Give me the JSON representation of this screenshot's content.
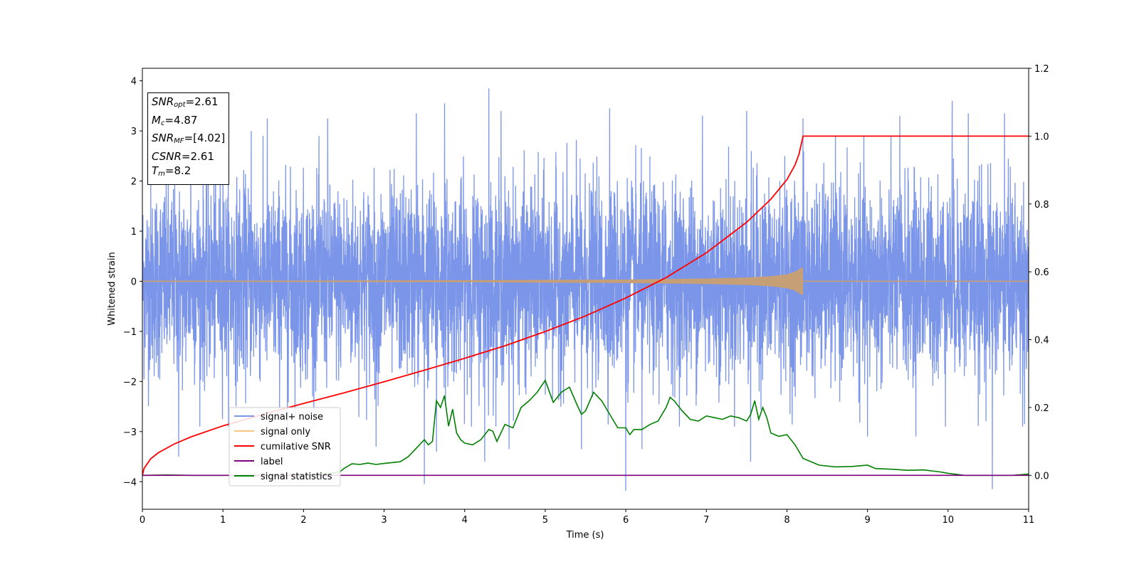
{
  "info_box": {
    "snr_opt": {
      "main": "SNR",
      "sub": "opt",
      "rest": "=2.61"
    },
    "mc": {
      "main": "M",
      "sub": "c",
      "rest": "=4.87"
    },
    "snr_mf": {
      "main": "SNR",
      "sub": "MF",
      "rest": "=[4.02]"
    },
    "csnr": {
      "main": "CSNR",
      "rest": "=2.61"
    },
    "tm": {
      "main": "T",
      "sub": "m",
      "rest": "=8.2"
    }
  },
  "chart_data": {
    "type": "line",
    "xlabel": "Time (s)",
    "ylabel": "Whitened strain",
    "xlim": [
      0,
      11
    ],
    "ylim": [
      -4.55,
      4.25
    ],
    "y2lim": [
      -0.1,
      1.2
    ],
    "x_ticks": [
      "0",
      "1",
      "2",
      "3",
      "4",
      "5",
      "6",
      "7",
      "8",
      "9",
      "10",
      "11"
    ],
    "y_ticks": [
      "−4",
      "−3",
      "−2",
      "−1",
      "0",
      "1",
      "2",
      "3",
      "4"
    ],
    "y_tick_values": [
      -4,
      -3,
      -2,
      -1,
      0,
      1,
      2,
      3,
      4
    ],
    "y2_ticks": [
      "0.0",
      "0.2",
      "0.4",
      "0.6",
      "0.8",
      "1.0",
      "1.2"
    ],
    "y2_tick_values": [
      0.0,
      0.2,
      0.4,
      0.6,
      0.8,
      1.0,
      1.2
    ],
    "legend_position": "lower-left",
    "colors": {
      "noise": "#7b95e9",
      "signal": "#f5c77e",
      "signal_overlap": "#c79f77",
      "snr": "#ff0000",
      "label": "#800080",
      "stat": "#008000"
    },
    "series": [
      {
        "name": "signal+ noise",
        "axis": "left",
        "note_range": [
          -4.18,
          3.85
        ],
        "peaks": [
          [
            0.6,
            2.85
          ],
          [
            1.0,
            3.05
          ],
          [
            1.35,
            3.0
          ],
          [
            1.55,
            3.25
          ],
          [
            2.3,
            3.25
          ],
          [
            3.4,
            3.35
          ],
          [
            3.75,
            3.55
          ],
          [
            4.3,
            3.85
          ],
          [
            4.45,
            3.4
          ],
          [
            5.8,
            3.45
          ],
          [
            6.0,
            3.8
          ],
          [
            6.95,
            3.3
          ],
          [
            7.5,
            3.4
          ],
          [
            8.2,
            3.25
          ],
          [
            9.0,
            3.5
          ],
          [
            9.4,
            3.3
          ],
          [
            10.05,
            3.6
          ],
          [
            10.25,
            3.35
          ],
          [
            10.7,
            3.35
          ]
        ],
        "troughs": [
          [
            0.45,
            -3.5
          ],
          [
            1.8,
            -3.05
          ],
          [
            2.9,
            -3.3
          ],
          [
            3.5,
            -4.05
          ],
          [
            3.65,
            -3.4
          ],
          [
            4.25,
            -3.6
          ],
          [
            4.55,
            -3.35
          ],
          [
            5.45,
            -3.35
          ],
          [
            6.0,
            -4.18
          ],
          [
            6.2,
            -3.35
          ],
          [
            7.55,
            -3.6
          ],
          [
            9.0,
            -3.1
          ],
          [
            9.6,
            -3.1
          ],
          [
            10.55,
            -4.15
          ],
          [
            10.95,
            -2.85
          ]
        ]
      },
      {
        "name": "signal only",
        "axis": "left",
        "x": [
          0,
          2,
          4,
          6,
          7,
          7.5,
          7.8,
          8.0,
          8.1,
          8.15,
          8.2
        ],
        "amplitude": [
          0.01,
          0.015,
          0.02,
          0.035,
          0.055,
          0.075,
          0.1,
          0.14,
          0.19,
          0.24,
          0.28
        ]
      },
      {
        "name": "cumilative SNR",
        "axis": "right",
        "x": [
          0,
          0.02,
          0.1,
          0.2,
          0.4,
          0.6,
          1.0,
          1.5,
          2.0,
          2.5,
          3.0,
          3.5,
          4.0,
          4.5,
          5.0,
          5.5,
          6.0,
          6.5,
          7.0,
          7.5,
          7.8,
          8.0,
          8.1,
          8.15,
          8.2,
          8.21,
          11.0
        ],
        "values": [
          0.0,
          0.02,
          0.048,
          0.067,
          0.093,
          0.113,
          0.146,
          0.18,
          0.212,
          0.243,
          0.276,
          0.31,
          0.345,
          0.382,
          0.424,
          0.47,
          0.523,
          0.583,
          0.656,
          0.746,
          0.814,
          0.872,
          0.915,
          0.947,
          1.0,
          1.0,
          1.0
        ]
      },
      {
        "name": "label",
        "axis": "right",
        "x": [
          0,
          11
        ],
        "values": [
          0.0,
          0.0
        ]
      },
      {
        "name": "signal statistics",
        "axis": "right",
        "x": [
          0,
          0.3,
          0.6,
          1.0,
          1.5,
          2.0,
          2.3,
          2.45,
          2.5,
          2.6,
          2.7,
          2.8,
          2.9,
          3.0,
          3.2,
          3.3,
          3.4,
          3.5,
          3.55,
          3.6,
          3.65,
          3.7,
          3.75,
          3.8,
          3.85,
          3.9,
          3.95,
          4.0,
          4.1,
          4.2,
          4.3,
          4.35,
          4.4,
          4.5,
          4.6,
          4.7,
          4.8,
          4.9,
          5.0,
          5.1,
          5.2,
          5.3,
          5.4,
          5.45,
          5.5,
          5.6,
          5.7,
          5.8,
          5.9,
          6.0,
          6.05,
          6.1,
          6.2,
          6.3,
          6.4,
          6.45,
          6.5,
          6.55,
          6.6,
          6.7,
          6.8,
          6.9,
          7.0,
          7.1,
          7.2,
          7.3,
          7.4,
          7.5,
          7.55,
          7.6,
          7.65,
          7.7,
          7.75,
          7.8,
          7.9,
          8.0,
          8.1,
          8.2,
          8.3,
          8.4,
          8.6,
          8.8,
          9.0,
          9.1,
          9.3,
          9.5,
          9.7,
          9.9,
          10.0,
          10.2,
          10.4,
          10.6,
          10.8,
          10.9,
          11.0
        ],
        "values": [
          0.0,
          0.001,
          0.0,
          0.0,
          0.0,
          0.0,
          0.005,
          0.01,
          0.02,
          0.034,
          0.032,
          0.036,
          0.032,
          0.035,
          0.04,
          0.055,
          0.08,
          0.105,
          0.09,
          0.1,
          0.22,
          0.2,
          0.235,
          0.145,
          0.195,
          0.125,
          0.105,
          0.095,
          0.09,
          0.105,
          0.135,
          0.13,
          0.1,
          0.15,
          0.14,
          0.2,
          0.22,
          0.245,
          0.28,
          0.215,
          0.245,
          0.26,
          0.205,
          0.18,
          0.19,
          0.245,
          0.22,
          0.18,
          0.14,
          0.14,
          0.12,
          0.135,
          0.135,
          0.15,
          0.16,
          0.18,
          0.2,
          0.23,
          0.22,
          0.19,
          0.165,
          0.16,
          0.175,
          0.17,
          0.165,
          0.175,
          0.17,
          0.16,
          0.18,
          0.22,
          0.165,
          0.2,
          0.17,
          0.125,
          0.115,
          0.12,
          0.09,
          0.05,
          0.04,
          0.03,
          0.025,
          0.026,
          0.03,
          0.02,
          0.018,
          0.015,
          0.016,
          0.01,
          0.006,
          0.0,
          0.0,
          0.0,
          0.0,
          0.002,
          0.004
        ]
      }
    ]
  }
}
